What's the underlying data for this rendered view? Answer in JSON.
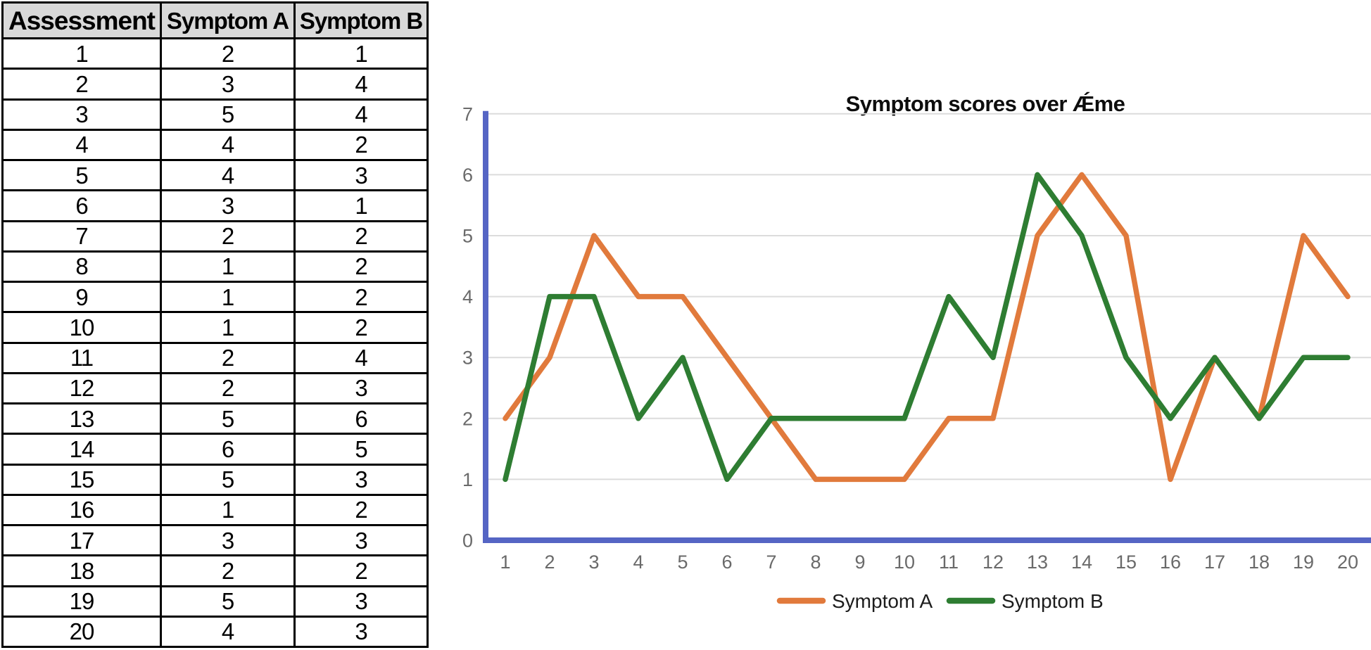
{
  "table": {
    "headers": [
      "Assessment",
      "Symptom A",
      "Symptom B"
    ],
    "rows": [
      [
        1,
        2,
        1
      ],
      [
        2,
        3,
        4
      ],
      [
        3,
        5,
        4
      ],
      [
        4,
        4,
        2
      ],
      [
        5,
        4,
        3
      ],
      [
        6,
        3,
        1
      ],
      [
        7,
        2,
        2
      ],
      [
        8,
        1,
        2
      ],
      [
        9,
        1,
        2
      ],
      [
        10,
        1,
        2
      ],
      [
        11,
        2,
        4
      ],
      [
        12,
        2,
        3
      ],
      [
        13,
        5,
        6
      ],
      [
        14,
        6,
        5
      ],
      [
        15,
        5,
        3
      ],
      [
        16,
        1,
        2
      ],
      [
        17,
        3,
        3
      ],
      [
        18,
        2,
        2
      ],
      [
        19,
        5,
        3
      ],
      [
        20,
        4,
        3
      ]
    ]
  },
  "chart": {
    "title": "Symptom scores over Ǽme"
  },
  "chart_data": {
    "type": "line",
    "title": "Symptom scores over Ǽme",
    "x": [
      1,
      2,
      3,
      4,
      5,
      6,
      7,
      8,
      9,
      10,
      11,
      12,
      13,
      14,
      15,
      16,
      17,
      18,
      19,
      20
    ],
    "series": [
      {
        "name": "Symptom A",
        "color": "#e17a3c",
        "values": [
          2,
          3,
          5,
          4,
          4,
          3,
          2,
          1,
          1,
          1,
          2,
          2,
          5,
          6,
          5,
          1,
          3,
          2,
          5,
          4
        ]
      },
      {
        "name": "Symptom B",
        "color": "#2e7d32",
        "values": [
          1,
          4,
          4,
          2,
          3,
          1,
          2,
          2,
          2,
          2,
          4,
          3,
          6,
          5,
          3,
          2,
          3,
          2,
          3,
          3
        ]
      }
    ],
    "ylim": [
      0,
      7
    ],
    "yticks": [
      0,
      1,
      2,
      3,
      4,
      5,
      6,
      7
    ],
    "grid": "horizontal-only",
    "legend_position": "bottom",
    "axis_color": "#5565c4",
    "gridline_color": "#dcdcdc",
    "tick_label_color": "#6a6a6a"
  }
}
